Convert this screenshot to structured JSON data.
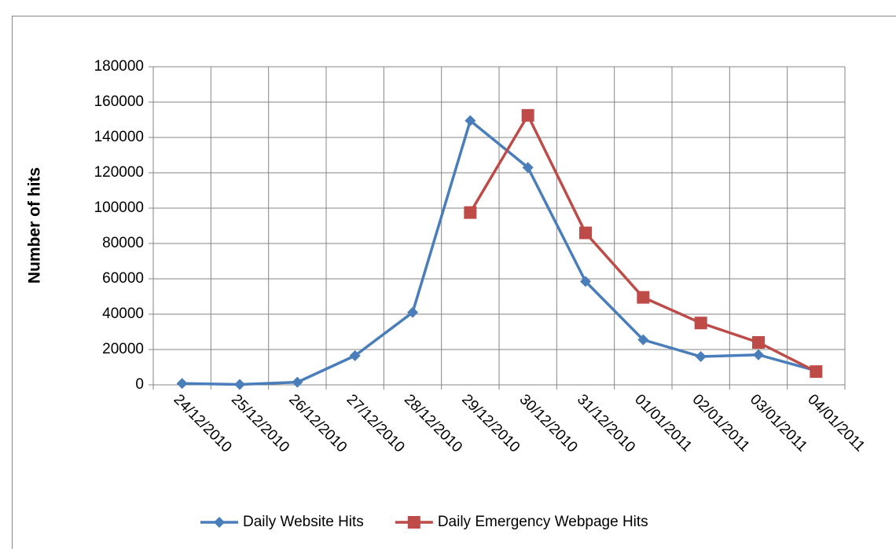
{
  "chart_data": {
    "type": "line",
    "y_label": "Number of hits",
    "categories": [
      "24/12/2010",
      "25/12/2010",
      "26/12/2010",
      "27/12/2010",
      "28/12/2010",
      "29/12/2010",
      "30/12/2010",
      "31/12/2010",
      "01/01/2011",
      "02/01/2011",
      "03/01/2011",
      "04/01/2011"
    ],
    "series": [
      {
        "name": "Daily Website Hits",
        "color": "#4a7ebb",
        "marker": "diamond",
        "values": [
          800,
          200,
          1500,
          16500,
          41000,
          149500,
          123000,
          58500,
          25500,
          16000,
          17000,
          8000
        ]
      },
      {
        "name": "Daily Emergency Webpage Hits",
        "color": "#be4b48",
        "marker": "square",
        "values": [
          null,
          null,
          null,
          null,
          null,
          97500,
          152500,
          86000,
          49500,
          35000,
          24000,
          7500
        ]
      }
    ],
    "ylim": [
      0,
      180000
    ],
    "yticks": [
      0,
      20000,
      40000,
      60000,
      80000,
      100000,
      120000,
      140000,
      160000,
      180000
    ],
    "grid": true,
    "legend": "bottom"
  }
}
